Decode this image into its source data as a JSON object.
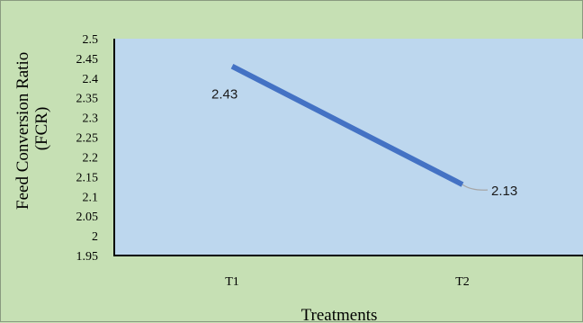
{
  "chart_data": {
    "type": "line",
    "categories": [
      "T1",
      "T2"
    ],
    "series": [
      {
        "values": [
          2.43,
          2.13
        ],
        "color": "#4472c4"
      }
    ],
    "data_labels": [
      "2.43",
      "2.13"
    ],
    "xlabel": "Treatments",
    "ylabel_lines": [
      "Feed Conversion Ratio",
      "(FCR)"
    ],
    "ylim": [
      1.95,
      2.5
    ],
    "yticks": [
      1.95,
      2,
      2.05,
      2.1,
      2.15,
      2.2,
      2.25,
      2.3,
      2.35,
      2.4,
      2.45,
      2.5
    ],
    "ytick_labels": [
      "1.95",
      "2",
      "2.05",
      "2.1",
      "2.15",
      "2.2",
      "2.25",
      "2.3",
      "2.35",
      "2.4",
      "2.45",
      "2.5"
    ],
    "plot_area_color": "#bdd7ee",
    "chart_area_color": "#c6e0b4",
    "legend": "none",
    "grid": false
  }
}
